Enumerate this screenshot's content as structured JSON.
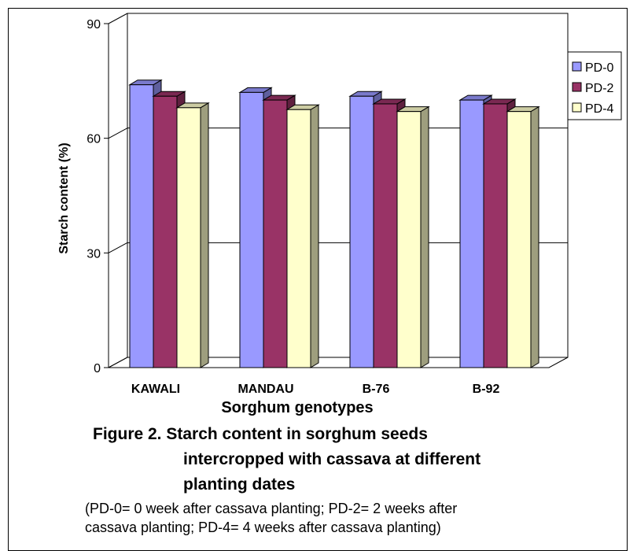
{
  "chart_data": {
    "type": "bar",
    "categories": [
      "KAWALI",
      "MANDAU",
      "B-76",
      "B-92"
    ],
    "series": [
      {
        "name": "PD-0",
        "values": [
          74.0,
          72.0,
          71.0,
          70.0
        ],
        "color": "#9999ff"
      },
      {
        "name": "PD-2",
        "values": [
          71.0,
          70.0,
          69.0,
          69.0
        ],
        "color": "#993366"
      },
      {
        "name": "PD-4",
        "values": [
          68.0,
          67.5,
          67.0,
          67.0
        ],
        "color": "#ffffcc"
      }
    ],
    "xlabel": "Sorghum genotypes",
    "ylabel": "Starch content (%)",
    "ylim": [
      0,
      90
    ],
    "yticks": [
      "0",
      "30",
      "60",
      "90"
    ],
    "grid": true,
    "legend_position": "right",
    "bar_style": "3d"
  },
  "caption": {
    "line1": "Figure 2.  Starch content in sorghum seeds",
    "line2": "intercropped with cassava at different",
    "line3": "planting dates"
  },
  "note": {
    "line1": "(PD-0= 0 week after cassava planting; PD-2= 2 weeks after",
    "line2": "cassava planting; PD-4= 4 weeks after cassava planting)"
  }
}
